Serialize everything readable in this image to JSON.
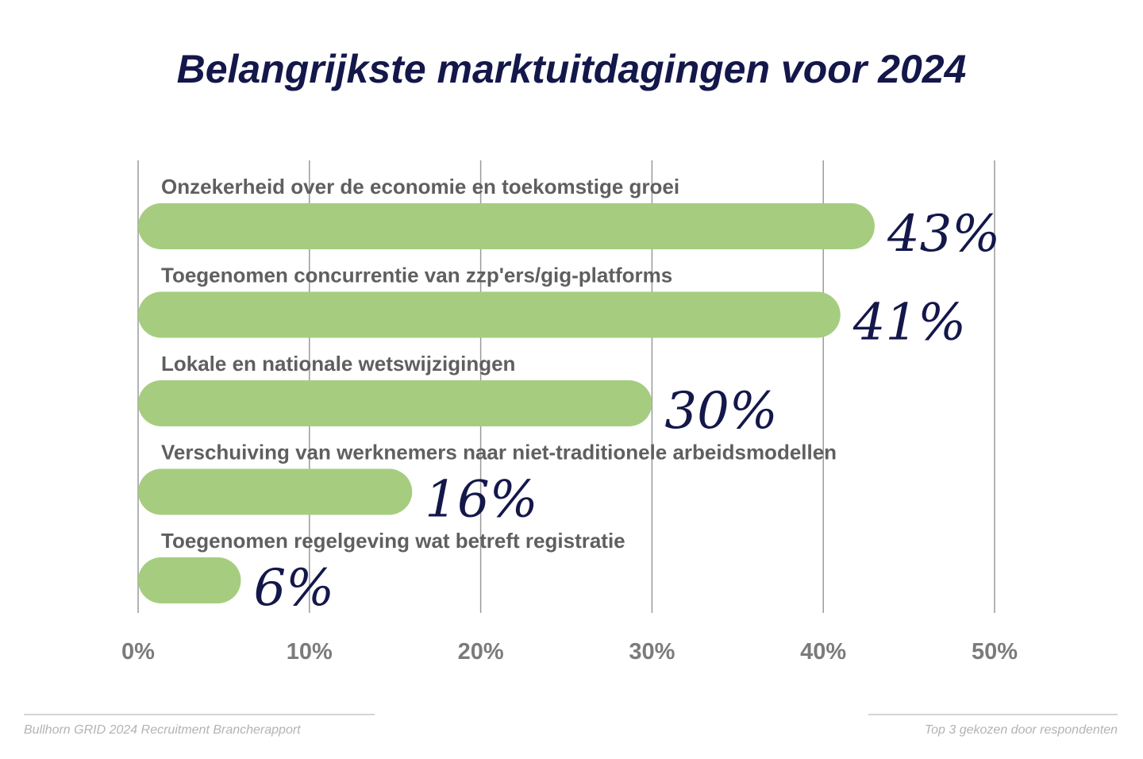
{
  "title": "Belangrijkste marktuitdagingen voor 2024",
  "chart_data": {
    "type": "bar",
    "orientation": "horizontal",
    "title": "Belangrijkste marktuitdagingen voor 2024",
    "categories": [
      "Onzekerheid over de economie en toekomstige groei",
      "Toegenomen concurrentie van zzp'ers/gig-platforms",
      "Lokale en nationale wetswijzigingen",
      "Verschuiving van werknemers naar niet-traditionele arbeidsmodellen",
      "Toegenomen regelgeving wat betreft registratie"
    ],
    "values": [
      43,
      41,
      30,
      16,
      6
    ],
    "value_labels": [
      "43%",
      "41%",
      "30%",
      "16%",
      "6%"
    ],
    "xlim": [
      0,
      50
    ],
    "ticks": [
      0,
      10,
      20,
      30,
      40,
      50
    ],
    "tick_labels": [
      "0%",
      "10%",
      "20%",
      "30%",
      "40%",
      "50%"
    ],
    "grid": true,
    "colors": {
      "bar": "#a6cd7f",
      "value_text": "#14174a",
      "label_text": "#5f5f5f",
      "tick_text": "#7b7b7b",
      "grid": "#9a9a9a"
    }
  },
  "footer": {
    "source": "Bullhorn GRID 2024 Recruitment Brancherapport",
    "note": "Top 3 gekozen door respondenten"
  }
}
